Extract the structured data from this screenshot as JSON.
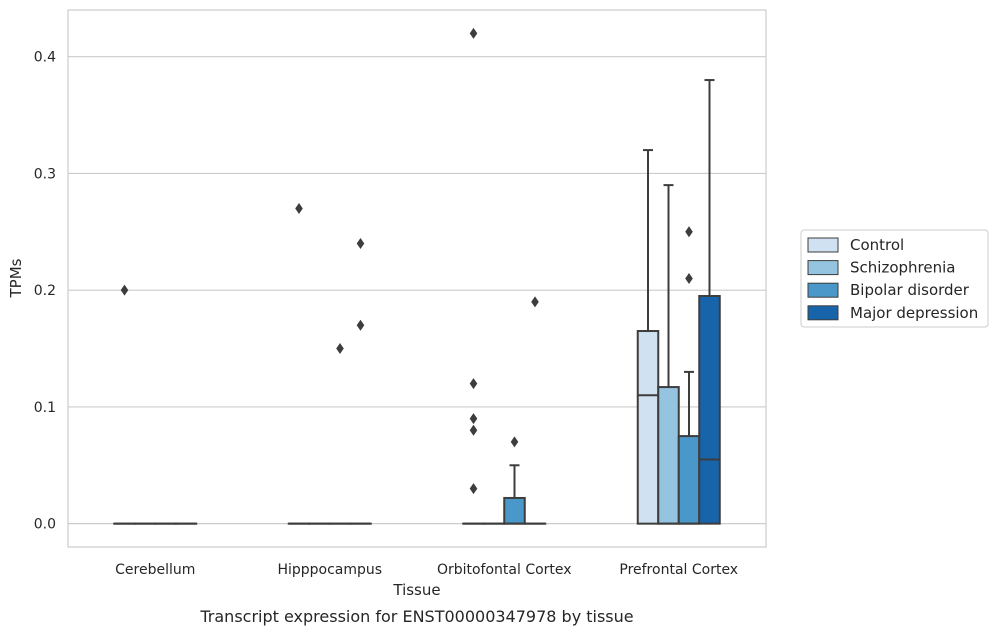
{
  "chart_data": {
    "type": "box",
    "caption": "Transcript expression for ENST00000347978 by tissue",
    "xlabel": "Tissue",
    "ylabel": "TPMs",
    "ylim": [
      -0.02,
      0.44
    ],
    "yticks": [
      0.0,
      0.1,
      0.2,
      0.3,
      0.4
    ],
    "ytick_labels": [
      "0.0",
      "0.1",
      "0.2",
      "0.3",
      "0.4"
    ],
    "grid": "horizontal",
    "legend_position": "right",
    "categories": [
      "Cerebellum",
      "Hipppocampus",
      "Orbitofontal Cortex",
      "Prefrontal Cortex"
    ],
    "series": [
      {
        "name": "Control",
        "color": "#d0e1f2",
        "boxes": [
          {
            "q1": 0,
            "median": 0,
            "q3": 0,
            "whisker_low": 0,
            "whisker_high": 0,
            "fliers": [
              0.2
            ]
          },
          {
            "q1": 0,
            "median": 0,
            "q3": 0,
            "whisker_low": 0,
            "whisker_high": 0,
            "fliers": [
              0.27
            ]
          },
          {
            "q1": 0,
            "median": 0,
            "q3": 0,
            "whisker_low": 0,
            "whisker_high": 0,
            "fliers": [
              0.42,
              0.12,
              0.08,
              0.09,
              0.03
            ]
          },
          {
            "q1": 0,
            "median": 0.11,
            "q3": 0.165,
            "whisker_low": 0,
            "whisker_high": 0.32,
            "fliers": []
          }
        ]
      },
      {
        "name": "Schizophrenia",
        "color": "#94c4df",
        "boxes": [
          {
            "q1": 0,
            "median": 0,
            "q3": 0,
            "whisker_low": 0,
            "whisker_high": 0,
            "fliers": []
          },
          {
            "q1": 0,
            "median": 0,
            "q3": 0,
            "whisker_low": 0,
            "whisker_high": 0,
            "fliers": []
          },
          {
            "q1": 0,
            "median": 0,
            "q3": 0,
            "whisker_low": 0,
            "whisker_high": 0,
            "fliers": []
          },
          {
            "q1": 0,
            "median": 0,
            "q3": 0.117,
            "whisker_low": 0,
            "whisker_high": 0.29,
            "fliers": []
          }
        ]
      },
      {
        "name": "Bipolar disorder",
        "color": "#4a98c9",
        "boxes": [
          {
            "q1": 0,
            "median": 0,
            "q3": 0,
            "whisker_low": 0,
            "whisker_high": 0,
            "fliers": []
          },
          {
            "q1": 0,
            "median": 0,
            "q3": 0,
            "whisker_low": 0,
            "whisker_high": 0,
            "fliers": [
              0.15
            ]
          },
          {
            "q1": 0,
            "median": 0,
            "q3": 0.022,
            "whisker_low": 0,
            "whisker_high": 0.05,
            "fliers": [
              0.07
            ]
          },
          {
            "q1": 0,
            "median": 0,
            "q3": 0.075,
            "whisker_low": 0,
            "whisker_high": 0.13,
            "fliers": [
              0.25,
              0.21
            ]
          }
        ]
      },
      {
        "name": "Major depression",
        "color": "#1764ab",
        "boxes": [
          {
            "q1": 0,
            "median": 0,
            "q3": 0,
            "whisker_low": 0,
            "whisker_high": 0,
            "fliers": []
          },
          {
            "q1": 0,
            "median": 0,
            "q3": 0,
            "whisker_low": 0,
            "whisker_high": 0,
            "fliers": [
              0.24,
              0.17
            ]
          },
          {
            "q1": 0,
            "median": 0,
            "q3": 0,
            "whisker_low": 0,
            "whisker_high": 0,
            "fliers": [
              0.19
            ]
          },
          {
            "q1": 0,
            "median": 0.055,
            "q3": 0.195,
            "whisker_low": 0,
            "whisker_high": 0.38,
            "fliers": []
          }
        ]
      }
    ]
  }
}
